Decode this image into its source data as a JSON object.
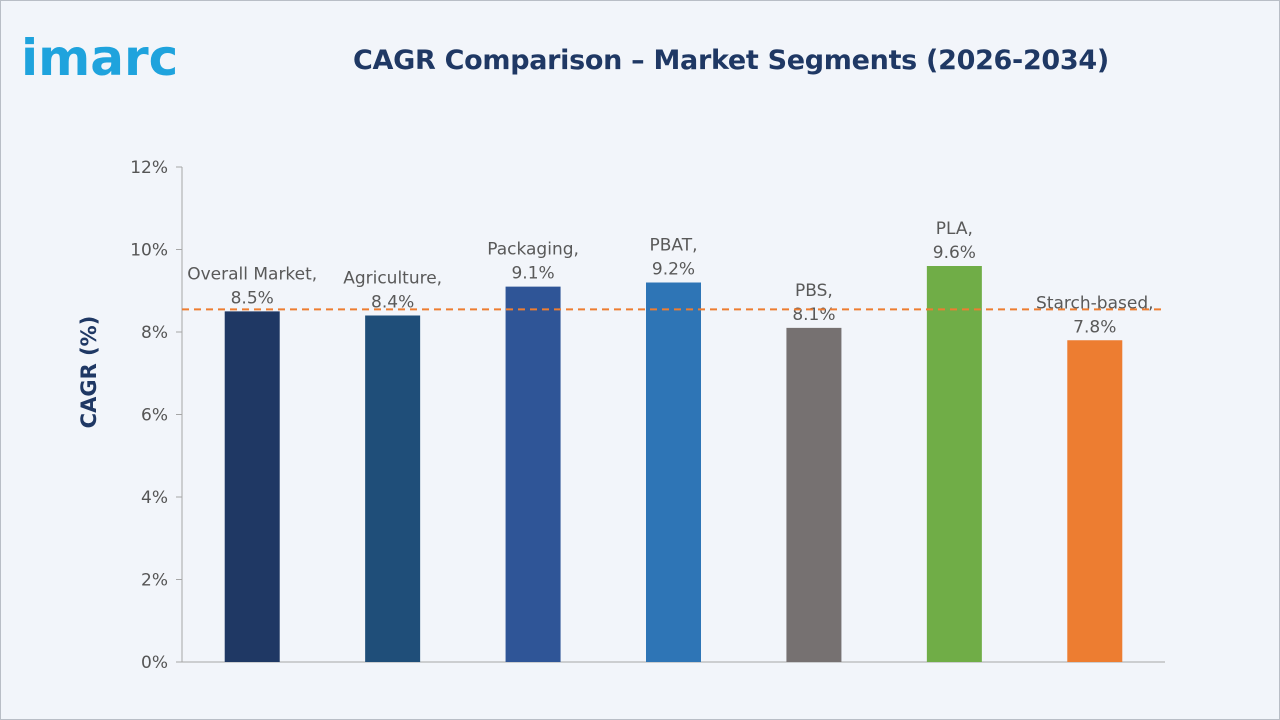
{
  "brand": {
    "logo_text": "imarc",
    "logo_color": "#1fa3dd"
  },
  "chart_data": {
    "type": "bar",
    "title": "CAGR Comparison – Market Segments (2026-2034)",
    "ylabel": "CAGR (%)",
    "xlabel": "",
    "ylim": [
      0,
      12
    ],
    "yticks": [
      0,
      2,
      4,
      6,
      8,
      10,
      12
    ],
    "ytick_labels": [
      "0%",
      "2%",
      "4%",
      "6%",
      "8%",
      "10%",
      "12%"
    ],
    "categories": [
      "Overall Market",
      "Agriculture",
      "Packaging",
      "PBAT",
      "PBS",
      "PLA",
      "Starch-based"
    ],
    "values": [
      8.5,
      8.4,
      9.1,
      9.2,
      8.1,
      9.6,
      7.8
    ],
    "data_labels": [
      [
        "Overall Market,",
        "8.5%"
      ],
      [
        "Agriculture,",
        "8.4%"
      ],
      [
        "Packaging,",
        "9.1%"
      ],
      [
        "PBAT,",
        "9.2%"
      ],
      [
        "PBS,",
        "8.1%"
      ],
      [
        "PLA,",
        "9.6%"
      ],
      [
        "Starch-based,",
        "7.8%"
      ]
    ],
    "colors": [
      "#1f3864",
      "#1f4e79",
      "#2f5597",
      "#2e75b6",
      "#767171",
      "#70ad47",
      "#ed7d31"
    ],
    "reference_line": {
      "value": 8.55,
      "color": "#ed7d31",
      "style": "dashed"
    },
    "grid": false
  }
}
